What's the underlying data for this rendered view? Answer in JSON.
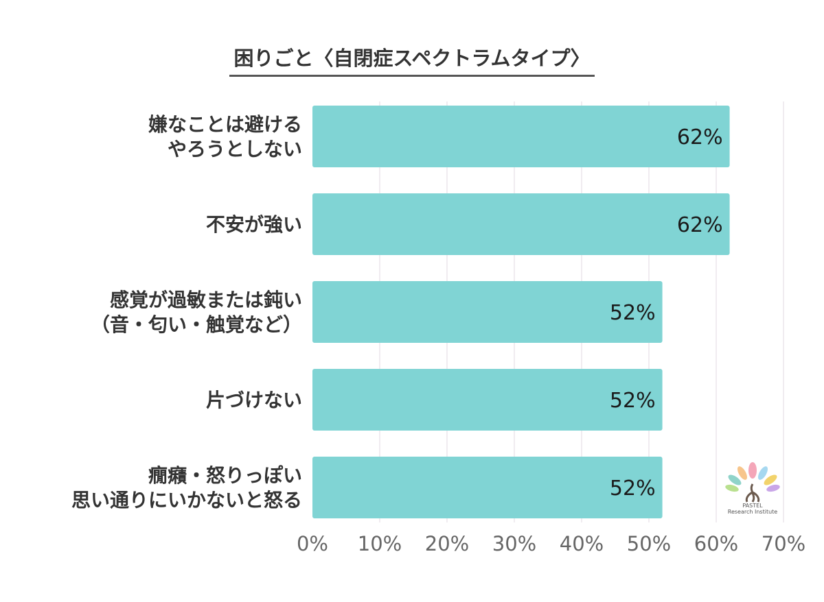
{
  "chart_data": {
    "type": "bar",
    "orientation": "horizontal",
    "title": "困りごと〈自閉症スペクトラムタイプ〉",
    "categories": [
      [
        "嫌なことは避ける",
        "やろうとしない"
      ],
      [
        "不安が強い"
      ],
      [
        "感覚が過敏または鈍い",
        "（音・匂い・触覚など）"
      ],
      [
        "片づけない"
      ],
      [
        "癇癪・怒りっぽい",
        "思い通りにいかないと怒る"
      ]
    ],
    "values": [
      62,
      62,
      52,
      52,
      52
    ],
    "value_labels": [
      "62%",
      "62%",
      "52%",
      "52%",
      "52%"
    ],
    "xlim": [
      0,
      70
    ],
    "x_ticks": [
      0,
      10,
      20,
      30,
      40,
      50,
      60,
      70
    ],
    "x_tick_labels": [
      "0%",
      "10%",
      "20%",
      "30%",
      "40%",
      "50%",
      "60%",
      "70%"
    ],
    "grid": true,
    "bar_color": "#80d4d4"
  },
  "logo": {
    "line1": "PASTEL",
    "line2": "Research Institute"
  }
}
